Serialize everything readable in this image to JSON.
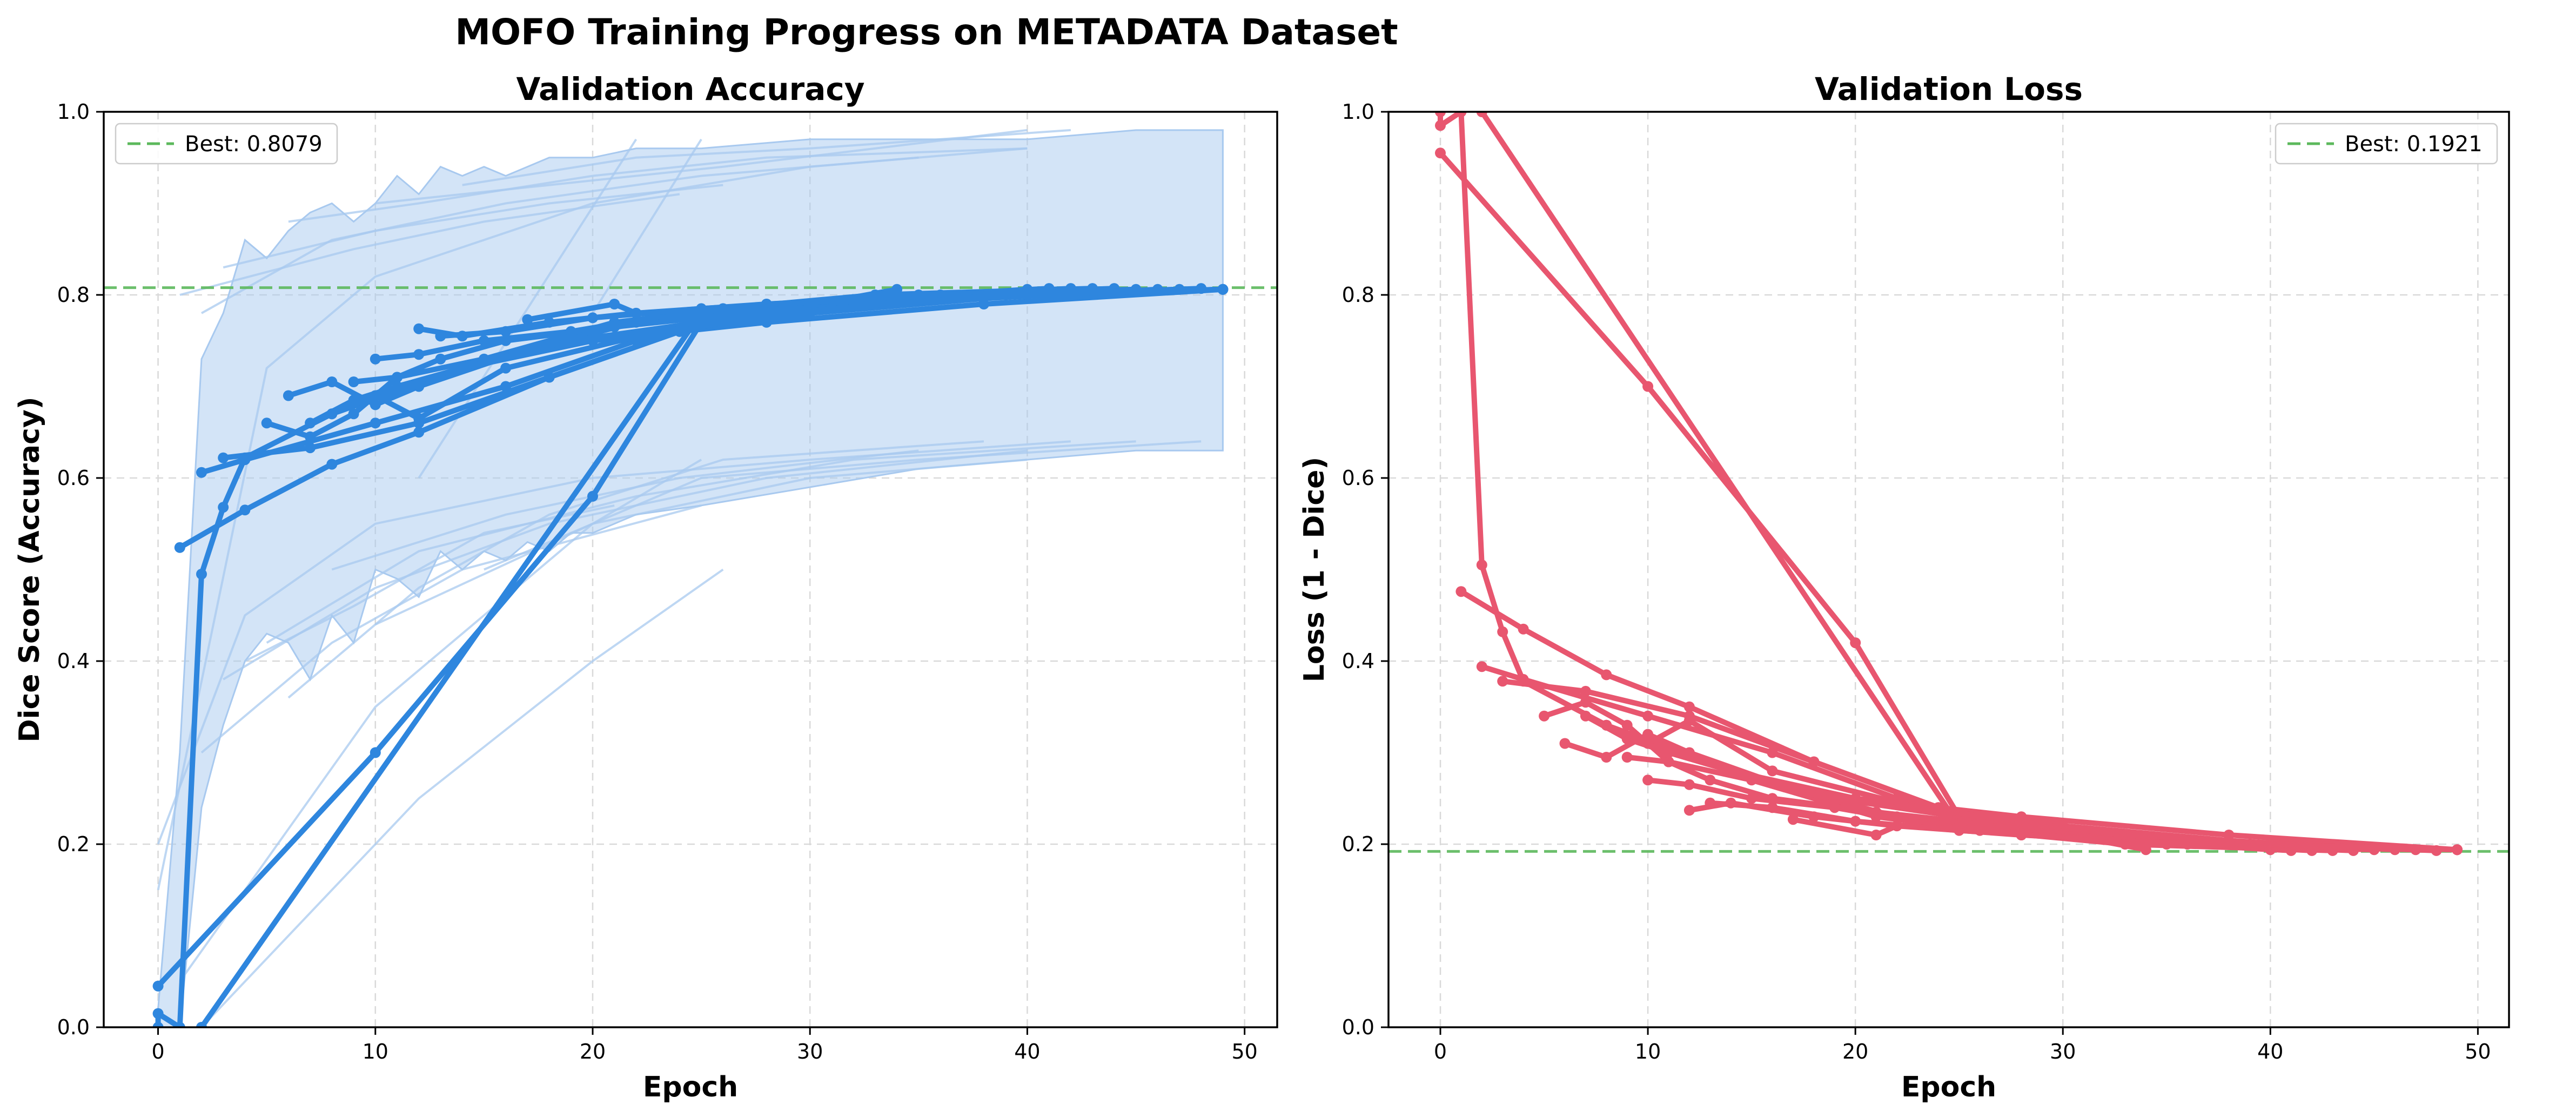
{
  "figure": {
    "suptitle": "MOFO Training Progress on METADATA Dataset"
  },
  "chart_data": [
    {
      "type": "line",
      "title": "Validation Accuracy",
      "xlabel": "Epoch",
      "ylabel": "Dice Score (Accuracy)",
      "xlim": [
        -2.5,
        51.5
      ],
      "ylim": [
        0,
        1.0
      ],
      "xticks": [
        0,
        10,
        20,
        30,
        40,
        50
      ],
      "yticks": [
        0.0,
        0.2,
        0.4,
        0.6,
        0.8,
        1.0
      ],
      "grid": true,
      "color": "#2e86de",
      "band_color": "#a8c9ef",
      "legend": {
        "location": "top-left",
        "entries": [
          {
            "label": "Best: 0.8079",
            "color": "#5cb85c",
            "style": "dashed"
          }
        ]
      },
      "best_line": 0.8079,
      "band": {
        "x": [
          0,
          1,
          2,
          3,
          4,
          5,
          6,
          7,
          8,
          9,
          10,
          11,
          12,
          13,
          14,
          15,
          16,
          17,
          18,
          19,
          20,
          22,
          25,
          30,
          35,
          40,
          45,
          49
        ],
        "upper": [
          0.02,
          0.3,
          0.73,
          0.78,
          0.86,
          0.84,
          0.87,
          0.89,
          0.9,
          0.88,
          0.9,
          0.93,
          0.91,
          0.94,
          0.93,
          0.94,
          0.93,
          0.94,
          0.95,
          0.95,
          0.95,
          0.96,
          0.96,
          0.97,
          0.97,
          0.97,
          0.98,
          0.98
        ],
        "lower": [
          0.0,
          0.0,
          0.24,
          0.33,
          0.4,
          0.43,
          0.42,
          0.38,
          0.45,
          0.42,
          0.5,
          0.49,
          0.47,
          0.52,
          0.5,
          0.52,
          0.51,
          0.53,
          0.52,
          0.54,
          0.54,
          0.56,
          0.57,
          0.59,
          0.61,
          0.62,
          0.63,
          0.63
        ]
      },
      "faint_lines": [
        [
          [
            0,
            0.15
          ],
          [
            5,
            0.72
          ],
          [
            10,
            0.82
          ],
          [
            20,
            0.9
          ],
          [
            30,
            0.94
          ],
          [
            40,
            0.96
          ]
        ],
        [
          [
            2,
            0.78
          ],
          [
            8,
            0.86
          ],
          [
            16,
            0.9
          ],
          [
            25,
            0.93
          ],
          [
            35,
            0.95
          ]
        ],
        [
          [
            6,
            0.88
          ],
          [
            12,
            0.9
          ],
          [
            20,
            0.93
          ],
          [
            28,
            0.95
          ],
          [
            40,
            0.96
          ]
        ],
        [
          [
            3,
            0.83
          ],
          [
            10,
            0.87
          ],
          [
            18,
            0.9
          ],
          [
            26,
            0.92
          ]
        ],
        [
          [
            10,
            0.9
          ],
          [
            18,
            0.92
          ],
          [
            26,
            0.94
          ],
          [
            40,
            0.98
          ]
        ],
        [
          [
            14,
            0.92
          ],
          [
            22,
            0.95
          ],
          [
            30,
            0.96
          ],
          [
            42,
            0.98
          ]
        ],
        [
          [
            1,
            0.8
          ],
          [
            9,
            0.85
          ],
          [
            15,
            0.88
          ],
          [
            24,
            0.91
          ]
        ],
        [
          [
            20,
            0.78
          ],
          [
            25,
            0.97
          ]
        ],
        [
          [
            12,
            0.6
          ],
          [
            22,
            0.97
          ]
        ],
        [
          [
            0,
            0.2
          ],
          [
            4,
            0.45
          ],
          [
            10,
            0.55
          ],
          [
            20,
            0.6
          ],
          [
            30,
            0.62
          ],
          [
            42,
            0.64
          ]
        ],
        [
          [
            3,
            0.38
          ],
          [
            10,
            0.48
          ],
          [
            18,
            0.55
          ],
          [
            28,
            0.6
          ],
          [
            40,
            0.63
          ]
        ],
        [
          [
            5,
            0.42
          ],
          [
            12,
            0.52
          ],
          [
            22,
            0.58
          ],
          [
            32,
            0.62
          ],
          [
            45,
            0.64
          ]
        ],
        [
          [
            8,
            0.5
          ],
          [
            16,
            0.56
          ],
          [
            24,
            0.6
          ],
          [
            35,
            0.63
          ]
        ],
        [
          [
            2,
            0.3
          ],
          [
            8,
            0.42
          ],
          [
            14,
            0.5
          ],
          [
            25,
            0.57
          ]
        ],
        [
          [
            10,
            0.44
          ],
          [
            20,
            0.55
          ],
          [
            30,
            0.6
          ],
          [
            40,
            0.62
          ]
        ],
        [
          [
            15,
            0.5
          ],
          [
            25,
            0.6
          ],
          [
            35,
            0.62
          ],
          [
            48,
            0.64
          ]
        ],
        [
          [
            1,
            0.05
          ],
          [
            10,
            0.35
          ],
          [
            20,
            0.55
          ],
          [
            25,
            0.62
          ]
        ],
        [
          [
            2,
            0.0
          ],
          [
            12,
            0.25
          ],
          [
            20,
            0.4
          ],
          [
            26,
            0.5
          ]
        ],
        [
          [
            6,
            0.36
          ],
          [
            12,
            0.48
          ],
          [
            18,
            0.56
          ],
          [
            26,
            0.62
          ],
          [
            38,
            0.64
          ]
        ],
        [
          [
            4,
            0.4
          ],
          [
            9,
            0.46
          ],
          [
            15,
            0.54
          ],
          [
            21,
            0.57
          ]
        ]
      ],
      "series": [
        {
          "x": [
            0,
            0,
            1,
            2,
            3,
            4,
            8,
            14,
            20,
            28,
            38,
            49
          ],
          "y": [
            0.0,
            0.015,
            0.0,
            0.495,
            0.568,
            0.622,
            0.67,
            0.72,
            0.75,
            0.77,
            0.79,
            0.806
          ]
        },
        {
          "x": [
            0,
            10,
            20,
            25,
            30,
            40,
            49
          ],
          "y": [
            0.045,
            0.3,
            0.58,
            0.77,
            0.785,
            0.8,
            0.806
          ]
        },
        {
          "x": [
            1,
            4,
            8,
            12,
            18,
            24,
            30,
            40,
            49
          ],
          "y": [
            0.524,
            0.565,
            0.615,
            0.65,
            0.71,
            0.76,
            0.78,
            0.8,
            0.806
          ]
        },
        {
          "x": [
            2,
            4,
            10,
            16,
            22,
            28,
            34
          ],
          "y": [
            0.606,
            0.62,
            0.66,
            0.7,
            0.75,
            0.78,
            0.806
          ]
        },
        {
          "x": [
            3,
            7,
            12,
            18,
            24,
            30,
            40
          ],
          "y": [
            0.622,
            0.633,
            0.66,
            0.71,
            0.76,
            0.79,
            0.806
          ]
        },
        {
          "x": [
            5,
            7,
            9,
            11,
            15,
            21,
            28,
            36,
            44
          ],
          "y": [
            0.66,
            0.645,
            0.67,
            0.71,
            0.73,
            0.77,
            0.79,
            0.8,
            0.807
          ]
        },
        {
          "x": [
            6,
            8,
            10,
            12,
            17,
            22,
            30,
            40,
            48
          ],
          "y": [
            0.69,
            0.705,
            0.68,
            0.7,
            0.74,
            0.77,
            0.79,
            0.8,
            0.807
          ]
        },
        {
          "x": [
            9,
            11,
            13,
            16,
            21,
            27,
            35,
            45
          ],
          "y": [
            0.705,
            0.71,
            0.73,
            0.75,
            0.765,
            0.78,
            0.8,
            0.806
          ]
        },
        {
          "x": [
            10,
            12,
            15,
            19,
            24,
            32,
            42
          ],
          "y": [
            0.73,
            0.735,
            0.75,
            0.76,
            0.78,
            0.795,
            0.807
          ]
        },
        {
          "x": [
            12,
            14,
            18,
            22,
            28,
            38,
            47
          ],
          "y": [
            0.763,
            0.755,
            0.77,
            0.78,
            0.79,
            0.8,
            0.806
          ]
        },
        {
          "x": [
            13,
            16,
            20,
            25,
            32,
            41
          ],
          "y": [
            0.755,
            0.76,
            0.775,
            0.785,
            0.795,
            0.807
          ]
        },
        {
          "x": [
            17,
            21,
            22,
            26,
            33,
            43
          ],
          "y": [
            0.773,
            0.79,
            0.78,
            0.785,
            0.8,
            0.807
          ]
        },
        {
          "x": [
            7,
            9,
            11,
            14,
            19,
            25,
            33,
            46
          ],
          "y": [
            0.66,
            0.685,
            0.7,
            0.72,
            0.75,
            0.77,
            0.79,
            0.806
          ]
        },
        {
          "x": [
            8,
            10,
            12,
            16,
            23,
            31,
            39,
            49
          ],
          "y": [
            0.67,
            0.69,
            0.665,
            0.72,
            0.76,
            0.785,
            0.8,
            0.806
          ]
        },
        {
          "x": [
            2,
            25
          ],
          "y": [
            0.0,
            0.78
          ]
        }
      ]
    },
    {
      "type": "line",
      "title": "Validation Loss",
      "xlabel": "Epoch",
      "ylabel": "Loss (1 - Dice)",
      "xlim": [
        -2.5,
        51.5
      ],
      "ylim": [
        0,
        1.0
      ],
      "xticks": [
        0,
        10,
        20,
        30,
        40,
        50
      ],
      "yticks": [
        0.0,
        0.2,
        0.4,
        0.6,
        0.8,
        1.0
      ],
      "grid": true,
      "color": "#e8566f",
      "legend": {
        "location": "top-right",
        "entries": [
          {
            "label": "Best: 0.1921",
            "color": "#5cb85c",
            "style": "dashed"
          }
        ]
      },
      "best_line": 0.1921,
      "series": [
        {
          "x": [
            0,
            0,
            1,
            2,
            3,
            4,
            8,
            14,
            20,
            28,
            38,
            49
          ],
          "y": [
            1.0,
            0.985,
            1.0,
            0.505,
            0.432,
            0.378,
            0.33,
            0.28,
            0.25,
            0.23,
            0.21,
            0.194
          ]
        },
        {
          "x": [
            0,
            10,
            20,
            25,
            30,
            40,
            49
          ],
          "y": [
            0.955,
            0.7,
            0.42,
            0.23,
            0.215,
            0.2,
            0.194
          ]
        },
        {
          "x": [
            1,
            4,
            8,
            12,
            18,
            24,
            30,
            40,
            49
          ],
          "y": [
            0.476,
            0.435,
            0.385,
            0.35,
            0.29,
            0.24,
            0.22,
            0.2,
            0.194
          ]
        },
        {
          "x": [
            2,
            4,
            10,
            16,
            22,
            28,
            34
          ],
          "y": [
            0.394,
            0.38,
            0.34,
            0.3,
            0.25,
            0.22,
            0.194
          ]
        },
        {
          "x": [
            3,
            7,
            12,
            18,
            24,
            30,
            40
          ],
          "y": [
            0.378,
            0.367,
            0.34,
            0.29,
            0.24,
            0.21,
            0.194
          ]
        },
        {
          "x": [
            5,
            7,
            9,
            11,
            15,
            21,
            28,
            36,
            44
          ],
          "y": [
            0.34,
            0.355,
            0.33,
            0.29,
            0.27,
            0.23,
            0.21,
            0.2,
            0.193
          ]
        },
        {
          "x": [
            6,
            8,
            10,
            12,
            17,
            22,
            30,
            40,
            48
          ],
          "y": [
            0.31,
            0.295,
            0.32,
            0.3,
            0.26,
            0.23,
            0.21,
            0.2,
            0.193
          ]
        },
        {
          "x": [
            9,
            11,
            13,
            16,
            21,
            27,
            35,
            45
          ],
          "y": [
            0.295,
            0.29,
            0.27,
            0.25,
            0.235,
            0.22,
            0.2,
            0.194
          ]
        },
        {
          "x": [
            10,
            12,
            15,
            19,
            24,
            32,
            42
          ],
          "y": [
            0.27,
            0.265,
            0.25,
            0.24,
            0.22,
            0.205,
            0.193
          ]
        },
        {
          "x": [
            12,
            14,
            18,
            22,
            28,
            38,
            47
          ],
          "y": [
            0.237,
            0.245,
            0.23,
            0.22,
            0.21,
            0.2,
            0.194
          ]
        },
        {
          "x": [
            13,
            16,
            20,
            25,
            32,
            41
          ],
          "y": [
            0.245,
            0.24,
            0.225,
            0.215,
            0.205,
            0.193
          ]
        },
        {
          "x": [
            17,
            21,
            22,
            26,
            33,
            43
          ],
          "y": [
            0.227,
            0.21,
            0.22,
            0.215,
            0.2,
            0.193
          ]
        },
        {
          "x": [
            7,
            9,
            11,
            14,
            19,
            25,
            33,
            46
          ],
          "y": [
            0.34,
            0.315,
            0.3,
            0.28,
            0.25,
            0.23,
            0.21,
            0.194
          ]
        },
        {
          "x": [
            8,
            10,
            12,
            16,
            23,
            31,
            39,
            49
          ],
          "y": [
            0.33,
            0.31,
            0.335,
            0.28,
            0.24,
            0.215,
            0.2,
            0.194
          ]
        },
        {
          "x": [
            2,
            25
          ],
          "y": [
            1.0,
            0.22
          ]
        }
      ]
    }
  ]
}
